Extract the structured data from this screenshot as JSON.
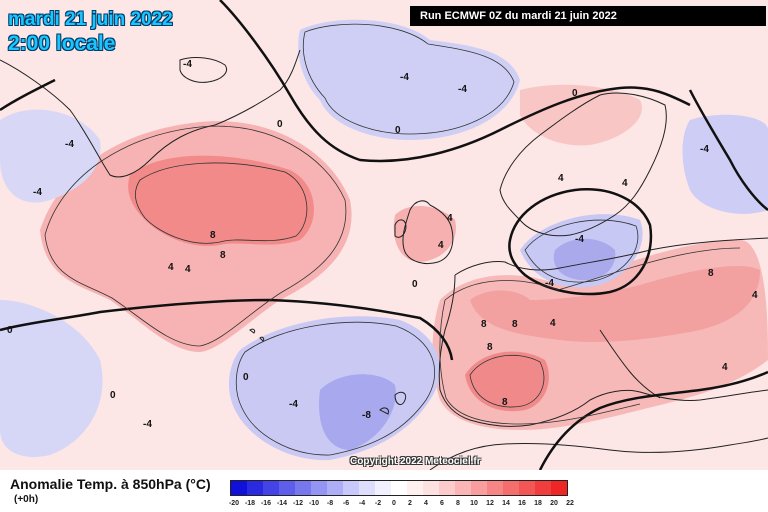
{
  "header": {
    "date": "mardi 21 juin 2022",
    "time": "2:00 locale",
    "run": "Run ECMWF 0Z du mardi 21 juin 2022"
  },
  "map": {
    "copyright": "Copyright 2022 Meteociel.fr",
    "contour_labels": [
      {
        "id": "lbl-1",
        "text": "-4"
      },
      {
        "id": "lbl-2",
        "text": "-4"
      },
      {
        "id": "lbl-3",
        "text": "-4"
      },
      {
        "id": "lbl-4",
        "text": "0"
      },
      {
        "id": "lbl-5",
        "text": "0"
      },
      {
        "id": "lbl-6",
        "text": "-4"
      },
      {
        "id": "lbl-7",
        "text": "-4"
      },
      {
        "id": "lbl-8",
        "text": "4"
      },
      {
        "id": "lbl-9",
        "text": "8"
      },
      {
        "id": "lbl-10",
        "text": "8"
      },
      {
        "id": "lbl-11",
        "text": "4"
      },
      {
        "id": "lbl-12",
        "text": "0"
      },
      {
        "id": "lbl-13",
        "text": "0"
      },
      {
        "id": "lbl-14",
        "text": "0"
      },
      {
        "id": "lbl-15",
        "text": "-4"
      },
      {
        "id": "lbl-16",
        "text": "-4"
      },
      {
        "id": "lbl-17",
        "text": "-8"
      },
      {
        "id": "lbl-18",
        "text": "4"
      },
      {
        "id": "lbl-19",
        "text": "4"
      },
      {
        "id": "lbl-20",
        "text": "0"
      },
      {
        "id": "lbl-21",
        "text": "8"
      },
      {
        "id": "lbl-22",
        "text": "8"
      },
      {
        "id": "lbl-23",
        "text": "8"
      },
      {
        "id": "lbl-24",
        "text": "8"
      },
      {
        "id": "lbl-25",
        "text": "4"
      },
      {
        "id": "lbl-26",
        "text": "4"
      },
      {
        "id": "lbl-27",
        "text": "-4"
      },
      {
        "id": "lbl-28",
        "text": "-4"
      },
      {
        "id": "lbl-29",
        "text": "4"
      },
      {
        "id": "lbl-30",
        "text": "8"
      },
      {
        "id": "lbl-31",
        "text": "4"
      },
      {
        "id": "lbl-32",
        "text": "0"
      },
      {
        "id": "lbl-33",
        "text": "4"
      },
      {
        "id": "lbl-34",
        "text": "-4"
      }
    ]
  },
  "legend": {
    "title": "Anomalie Temp. à 850hPa (°C)",
    "lead": "(+0h)",
    "ticks": [
      "-20",
      "-18",
      "-16",
      "-14",
      "-12",
      "-10",
      "-8",
      "-6",
      "-4",
      "-2",
      "0",
      "2",
      "4",
      "6",
      "8",
      "10",
      "12",
      "14",
      "16",
      "18",
      "20",
      "22"
    ],
    "colors": [
      "#1010d8",
      "#2a2ae0",
      "#4444e6",
      "#5e5eea",
      "#7878ee",
      "#9494f2",
      "#aeaef6",
      "#c8c8fa",
      "#dedefc",
      "#f0f0fe",
      "#ffffff",
      "#fff0f0",
      "#fde0e0",
      "#fccccc",
      "#fab6b6",
      "#f89e9e",
      "#f68686",
      "#f46e6e",
      "#f25656",
      "#f03e3e",
      "#ee2626"
    ]
  }
}
